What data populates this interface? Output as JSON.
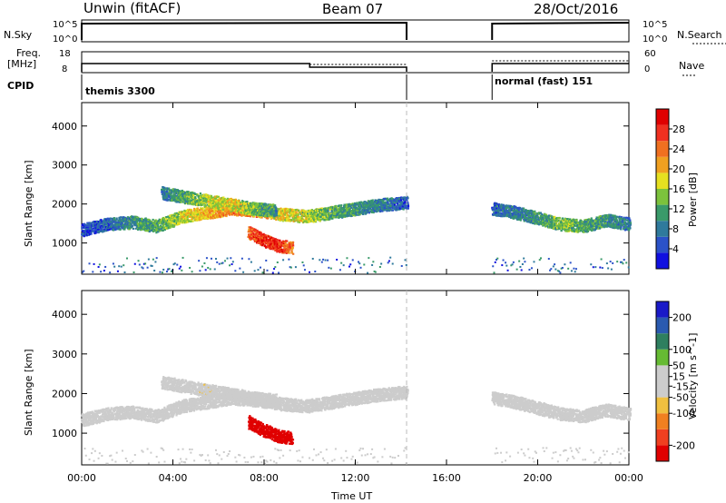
{
  "header": {
    "station": "Unwin (fitACF)",
    "beam": "Beam 07",
    "date": "28/Oct/2016"
  },
  "status_panels": {
    "nsky_label": "N.Sky",
    "nsky_ticks": [
      "10^5",
      "10^0"
    ],
    "nsearch_label": "N.Search",
    "freq_label": "Freq.",
    "freq_unit": "[MHz]",
    "freq_ticks": [
      "18",
      "8"
    ],
    "nave_label": "Nave",
    "nave_ticks": [
      "60",
      "0"
    ],
    "cpid_label": "CPID",
    "cpid_segments": [
      {
        "name": "themis 3300",
        "start_hour": 0,
        "end_hour": 14.25
      },
      {
        "name": "normal (fast) 151",
        "start_hour": 18,
        "end_hour": 24
      }
    ],
    "data_gap_hours": [
      14.25,
      18
    ]
  },
  "colors": {
    "power_scale": [
      "#1010e0",
      "#2b52c8",
      "#2f7a9c",
      "#3a9a6a",
      "#7cc23c",
      "#e6e020",
      "#f0a020",
      "#f07020",
      "#f03020",
      "#e00000"
    ],
    "velocity_scale": [
      "#e00000",
      "#f04020",
      "#f08020",
      "#f0c040",
      "#cccccc",
      "#cccccc",
      "#66bb33",
      "#2e7f5f",
      "#2a5ab0",
      "#1a1ac8"
    ]
  },
  "chart_data": [
    {
      "type": "heatmap",
      "name": "power",
      "ylabel": "Slant Range [km]",
      "yticks": [
        "1000",
        "2000",
        "3000",
        "4000"
      ],
      "ylim": [
        200,
        4600
      ],
      "xlim": [
        0,
        24
      ],
      "colorbar_label": "Power [dB]",
      "colorbar_ticks": [
        "4",
        "8",
        "12",
        "16",
        "20",
        "24",
        "28"
      ],
      "colorbar_range": [
        0,
        32
      ],
      "bands": [
        {
          "t0": 0,
          "t1": 14.25,
          "r": [
            1350,
            1500,
            1550,
            1450,
            1700,
            1800,
            1900,
            1850,
            1750,
            1700,
            1800,
            1900,
            2000,
            2050
          ],
          "levels": [
            4,
            6,
            10,
            12,
            16,
            20,
            24,
            22,
            18,
            16,
            12,
            10,
            8,
            6
          ]
        },
        {
          "t0": 3.5,
          "t1": 8.5,
          "r": [
            2300,
            2200,
            2100,
            2000,
            1900,
            1850
          ],
          "levels": [
            8,
            12,
            16,
            18,
            14,
            10
          ]
        },
        {
          "t0": 7.3,
          "t1": 9.2,
          "r": [
            1300,
            1100,
            950,
            900
          ],
          "levels": [
            24,
            28,
            28,
            24
          ]
        },
        {
          "t0": 18,
          "t1": 24,
          "r": [
            1900,
            1800,
            1650,
            1500,
            1450,
            1600,
            1500
          ],
          "levels": [
            6,
            8,
            10,
            14,
            12,
            10,
            8
          ]
        }
      ]
    },
    {
      "type": "heatmap",
      "name": "velocity",
      "ylabel": "Slant Range [km]",
      "yticks": [
        "1000",
        "2000",
        "3000",
        "4000"
      ],
      "ylim": [
        200,
        4600
      ],
      "xlim": [
        0,
        24
      ],
      "xticks": [
        "00:00",
        "04:00",
        "08:00",
        "12:00",
        "16:00",
        "20:00",
        "00:00"
      ],
      "xlabel": "Time UT",
      "colorbar_label": "Velocity [m s^-1]",
      "colorbar_ticks": [
        "200",
        "100",
        "50",
        "15",
        "-15",
        "-50",
        "-100",
        "-200"
      ],
      "colorbar_range": [
        -250,
        250
      ],
      "bands": [
        {
          "t0": 0,
          "t1": 14.25,
          "r": [
            1350,
            1500,
            1550,
            1450,
            1700,
            1800,
            1900,
            1850,
            1750,
            1700,
            1800,
            1900,
            2000,
            2050
          ],
          "levels": [
            0,
            0,
            -10,
            0,
            0,
            -20,
            -30,
            0,
            0,
            0,
            -10,
            0,
            0,
            0
          ]
        },
        {
          "t0": 3.5,
          "t1": 8.5,
          "r": [
            2300,
            2200,
            2100,
            2000,
            1900,
            1850
          ],
          "levels": [
            -20,
            -30,
            -40,
            -20,
            0,
            0
          ]
        },
        {
          "t0": 7.3,
          "t1": 9.2,
          "r": [
            1300,
            1100,
            950,
            900
          ],
          "levels": [
            -220,
            -240,
            -240,
            -220
          ]
        },
        {
          "t0": 18,
          "t1": 24,
          "r": [
            1900,
            1800,
            1650,
            1500,
            1450,
            1600,
            1500
          ],
          "levels": [
            0,
            -10,
            0,
            0,
            0,
            0,
            0
          ]
        }
      ]
    }
  ]
}
